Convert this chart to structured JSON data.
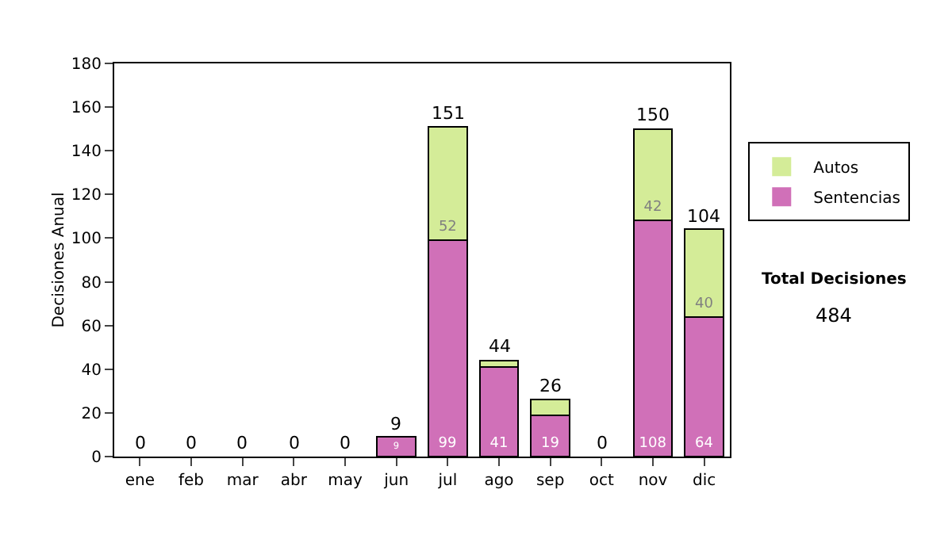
{
  "chart_data": {
    "type": "bar",
    "ylabel": "Decisiones Anual",
    "stacked": true,
    "categories": [
      "ene",
      "feb",
      "mar",
      "abr",
      "may",
      "jun",
      "jul",
      "ago",
      "sep",
      "oct",
      "nov",
      "dic"
    ],
    "series": [
      {
        "name": "Sentencias",
        "color": "#d070b8",
        "values": [
          0,
          0,
          0,
          0,
          0,
          9,
          99,
          41,
          19,
          0,
          108,
          64
        ],
        "value_labels": [
          null,
          null,
          null,
          null,
          null,
          "9",
          "99",
          "41",
          "19",
          null,
          "108",
          "64"
        ]
      },
      {
        "name": "Autos",
        "color": "#d4ec98",
        "values": [
          0,
          0,
          0,
          0,
          0,
          0,
          52,
          3,
          7,
          0,
          42,
          40
        ],
        "value_labels": [
          null,
          null,
          null,
          null,
          null,
          null,
          "52",
          null,
          null,
          null,
          "42",
          "40"
        ]
      }
    ],
    "totals": [
      "0",
      "0",
      "0",
      "0",
      "0",
      "9",
      "151",
      "44",
      "26",
      "0",
      "150",
      "104"
    ],
    "ylim": [
      0,
      180
    ],
    "yticks": [
      0,
      20,
      40,
      60,
      80,
      100,
      120,
      140,
      160,
      180
    ],
    "legend": "right",
    "annotations": [
      "Total Decisiones",
      "484"
    ]
  }
}
